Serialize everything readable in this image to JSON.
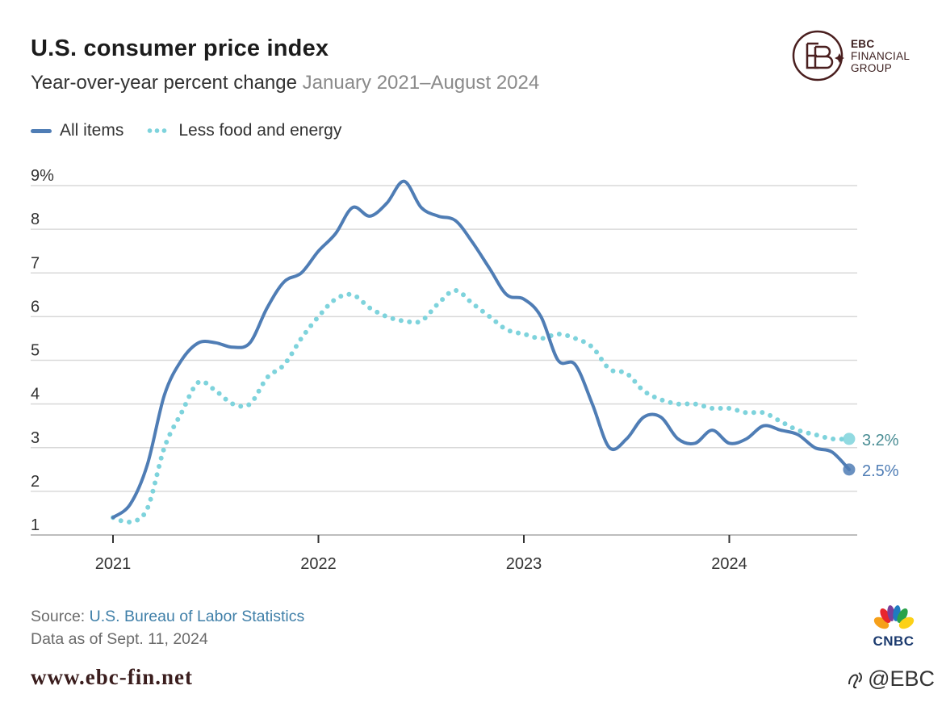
{
  "chart_data": {
    "type": "line",
    "title": "U.S. consumer price index",
    "subtitle": "Year-over-year percent change",
    "subtitle_range": "January 2021–August 2024",
    "ylim": [
      1,
      9
    ],
    "y_ticks": [
      "9%",
      "8",
      "7",
      "6",
      "5",
      "4",
      "3",
      "2",
      "1"
    ],
    "y_tick_values": [
      9,
      8,
      7,
      6,
      5,
      4,
      3,
      2,
      1
    ],
    "x_ticks": [
      "2021",
      "2022",
      "2023",
      "2024"
    ],
    "x_tick_values": [
      2021,
      2022,
      2023,
      2024
    ],
    "x_start": 2021.0,
    "x_step_months": 1,
    "grid": true,
    "legend_position": "top-left",
    "series": [
      {
        "name": "All items",
        "style": "solid",
        "color": "#4f7db5",
        "end_label": "2.5%",
        "values": [
          1.4,
          1.7,
          2.6,
          4.2,
          5.0,
          5.4,
          5.4,
          5.3,
          5.4,
          6.2,
          6.8,
          7.0,
          7.5,
          7.9,
          8.5,
          8.3,
          8.6,
          9.1,
          8.5,
          8.3,
          8.2,
          7.7,
          7.1,
          6.5,
          6.4,
          6.0,
          5.0,
          4.9,
          4.0,
          3.0,
          3.2,
          3.7,
          3.7,
          3.2,
          3.1,
          3.4,
          3.1,
          3.2,
          3.5,
          3.4,
          3.3,
          3.0,
          2.9,
          2.5
        ]
      },
      {
        "name": "Less food and energy",
        "style": "dotted",
        "color": "#7ed3dc",
        "end_label": "3.2%",
        "values": [
          1.4,
          1.3,
          1.6,
          3.0,
          3.8,
          4.5,
          4.3,
          4.0,
          4.0,
          4.6,
          4.9,
          5.5,
          6.0,
          6.4,
          6.5,
          6.2,
          6.0,
          5.9,
          5.9,
          6.3,
          6.6,
          6.3,
          6.0,
          5.7,
          5.6,
          5.5,
          5.6,
          5.5,
          5.3,
          4.8,
          4.7,
          4.3,
          4.1,
          4.0,
          4.0,
          3.9,
          3.9,
          3.8,
          3.8,
          3.6,
          3.4,
          3.3,
          3.2,
          3.2
        ]
      }
    ]
  },
  "source": {
    "prefix": "Source:",
    "org": "U.S. Bureau of Labor Statistics",
    "asof": "Data as of Sept. 11, 2024"
  },
  "branding": {
    "ebc_line1": "EBC",
    "ebc_line2": "FINANCIAL",
    "ebc_line3": "GROUP",
    "cnbc": "CNBC",
    "website": "www.ebc-fin.net",
    "handle": "@EBC"
  }
}
